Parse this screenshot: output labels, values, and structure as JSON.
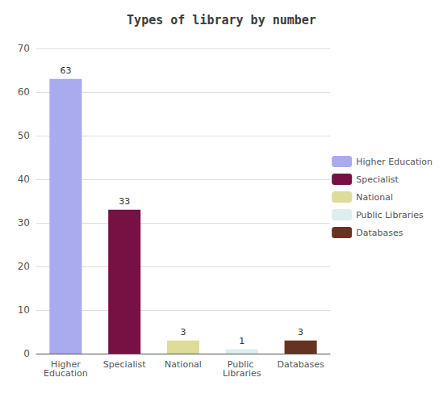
{
  "chart_data": {
    "type": "bar",
    "title": "Types of library by number",
    "categories": [
      "Higher\nEducation",
      "Specialist",
      "National",
      "Public Libraries",
      "Databases"
    ],
    "values": [
      63,
      33,
      3,
      1,
      3
    ],
    "colors": [
      "#aaaaee",
      "#771144",
      "#dddd99",
      "#ddeeee",
      "#663322"
    ],
    "legend_labels": [
      "Higher Education",
      "Specialist",
      "National",
      "Public Libraries",
      "Databases"
    ],
    "ylim": [
      0,
      70
    ],
    "yticks": [
      0,
      10,
      20,
      30,
      40,
      50,
      60,
      70
    ],
    "grid": true,
    "data_labels": true,
    "legend": "right"
  }
}
